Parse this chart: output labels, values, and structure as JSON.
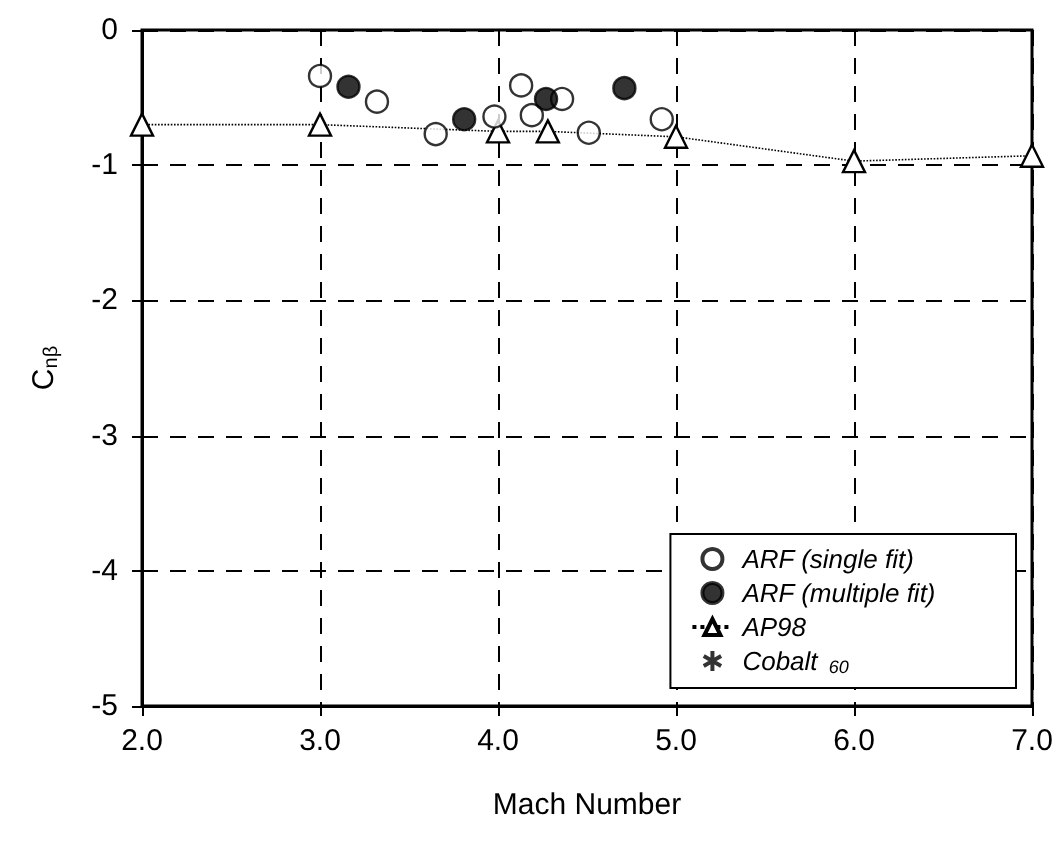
{
  "chart_data": {
    "type": "scatter",
    "xlabel": "Mach Number",
    "ylabel": "C$_{nβ}$",
    "xlim": [
      2,
      7
    ],
    "ylim": [
      -5,
      0
    ],
    "xticks": [
      {
        "value": 2,
        "label": "2.0"
      },
      {
        "value": 3,
        "label": "3.0"
      },
      {
        "value": 4,
        "label": "4.0"
      },
      {
        "value": 5,
        "label": "5.0"
      },
      {
        "value": 6,
        "label": "6.0"
      },
      {
        "value": 7,
        "label": "7.0"
      }
    ],
    "yticks": [
      -5,
      -4,
      -3,
      -2,
      -1,
      0
    ],
    "grid": true,
    "legend": "bottom right",
    "series": [
      {
        "name": "ARF (single fit)",
        "marker": "circle",
        "color": "#ffffff",
        "x": [
          3.0,
          3.32,
          3.65,
          3.98,
          4.13,
          4.19,
          4.36,
          4.51,
          4.92
        ],
        "values": [
          -0.34,
          -0.53,
          -0.77,
          -0.64,
          -0.41,
          -0.63,
          -0.51,
          -0.76,
          -0.66
        ]
      },
      {
        "name": "ARF (multiple fit)",
        "marker": "circle",
        "color": "#000000",
        "x": [
          3.16,
          3.81,
          4.27,
          4.71
        ],
        "values": [
          -0.42,
          -0.66,
          -0.51,
          -0.43
        ]
      },
      {
        "name": "AP98",
        "type": "line",
        "marker": "triangle",
        "line_style": "dotted",
        "color": "#ffffff",
        "x": [
          2.0,
          3.0,
          4.0,
          4.28,
          5.0,
          6.0,
          7.0
        ],
        "values": [
          -0.7,
          -0.7,
          -0.75,
          -0.75,
          -0.79,
          -0.97,
          -0.93
        ]
      },
      {
        "name": "Cobalt $_{60}$",
        "marker": "cross",
        "color": "#000000"
      }
    ]
  }
}
